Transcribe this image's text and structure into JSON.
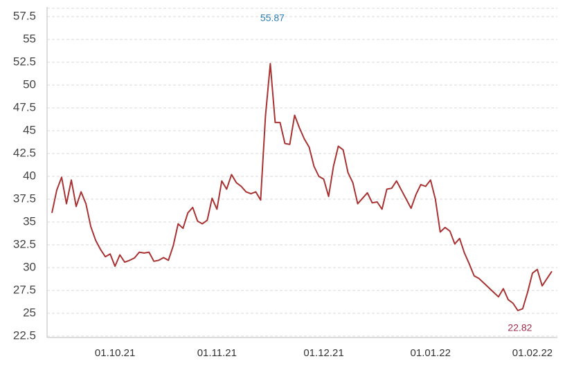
{
  "chart_data": {
    "type": "line",
    "categories": [
      null,
      null,
      null,
      null,
      null,
      null,
      null,
      null,
      null,
      null,
      null,
      null,
      null,
      "01.10.21",
      null,
      null,
      null,
      null,
      null,
      null,
      null,
      null,
      null,
      null,
      null,
      null,
      null,
      null,
      null,
      null,
      null,
      null,
      null,
      null,
      "01.11.21",
      null,
      null,
      null,
      null,
      null,
      null,
      null,
      null,
      null,
      null,
      null,
      null,
      null,
      null,
      null,
      null,
      null,
      null,
      null,
      null,
      null,
      "01.12.21",
      null,
      null,
      null,
      null,
      null,
      null,
      null,
      null,
      null,
      null,
      null,
      null,
      null,
      null,
      null,
      null,
      null,
      null,
      null,
      null,
      null,
      "01.01.22",
      null,
      null,
      null,
      null,
      null,
      null,
      null,
      null,
      null,
      null,
      null,
      null,
      null,
      null,
      null,
      null,
      null,
      null,
      null,
      null,
      "01.02.22",
      null,
      null,
      null,
      null
    ],
    "series": [
      {
        "color": "#a83232",
        "values": [
          36.0,
          38.5,
          39.9,
          37.0,
          39.6,
          36.7,
          38.3,
          37.0,
          34.5,
          33.0,
          32.0,
          31.2,
          31.5,
          30.15,
          31.4,
          30.6,
          30.8,
          31.06,
          31.7,
          31.6,
          31.7,
          30.7,
          30.8,
          31.1,
          30.8,
          32.4,
          34.8,
          34.3,
          36.0,
          36.6,
          35.1,
          34.8,
          35.2,
          37.6,
          36.4,
          39.5,
          38.6,
          40.2,
          39.3,
          38.9,
          38.3,
          38.1,
          38.3,
          37.4,
          46.6,
          52.35,
          45.9,
          45.9,
          43.6,
          43.5,
          46.7,
          45.3,
          44.1,
          43.2,
          41.1,
          40.0,
          39.7,
          37.8,
          41.1,
          43.3,
          42.9,
          40.4,
          39.3,
          37.0,
          37.6,
          38.2,
          37.1,
          37.2,
          36.4,
          38.6,
          38.7,
          39.5,
          38.5,
          37.5,
          36.5,
          38.0,
          39.1,
          38.9,
          39.6,
          37.5,
          33.9,
          34.4,
          34.0,
          32.6,
          33.2,
          31.6,
          30.4,
          29.1,
          28.8,
          28.3,
          27.8,
          27.3,
          26.8,
          27.7,
          26.5,
          26.1,
          25.3,
          25.5,
          27.3,
          29.4,
          29.8,
          28.0,
          28.8,
          29.6
        ]
      }
    ],
    "ylim": [
      22.5,
      57.5
    ],
    "yticks": [
      22.5,
      25,
      27.5,
      30,
      32.5,
      35,
      37.5,
      40,
      42.5,
      45,
      47.5,
      50,
      52.5,
      55,
      57.5
    ],
    "grid": true,
    "annotations": [
      {
        "text": "55.87",
        "color": "#2e7db5"
      },
      {
        "text": "22.82",
        "color": "#9b2a4a"
      }
    ]
  }
}
